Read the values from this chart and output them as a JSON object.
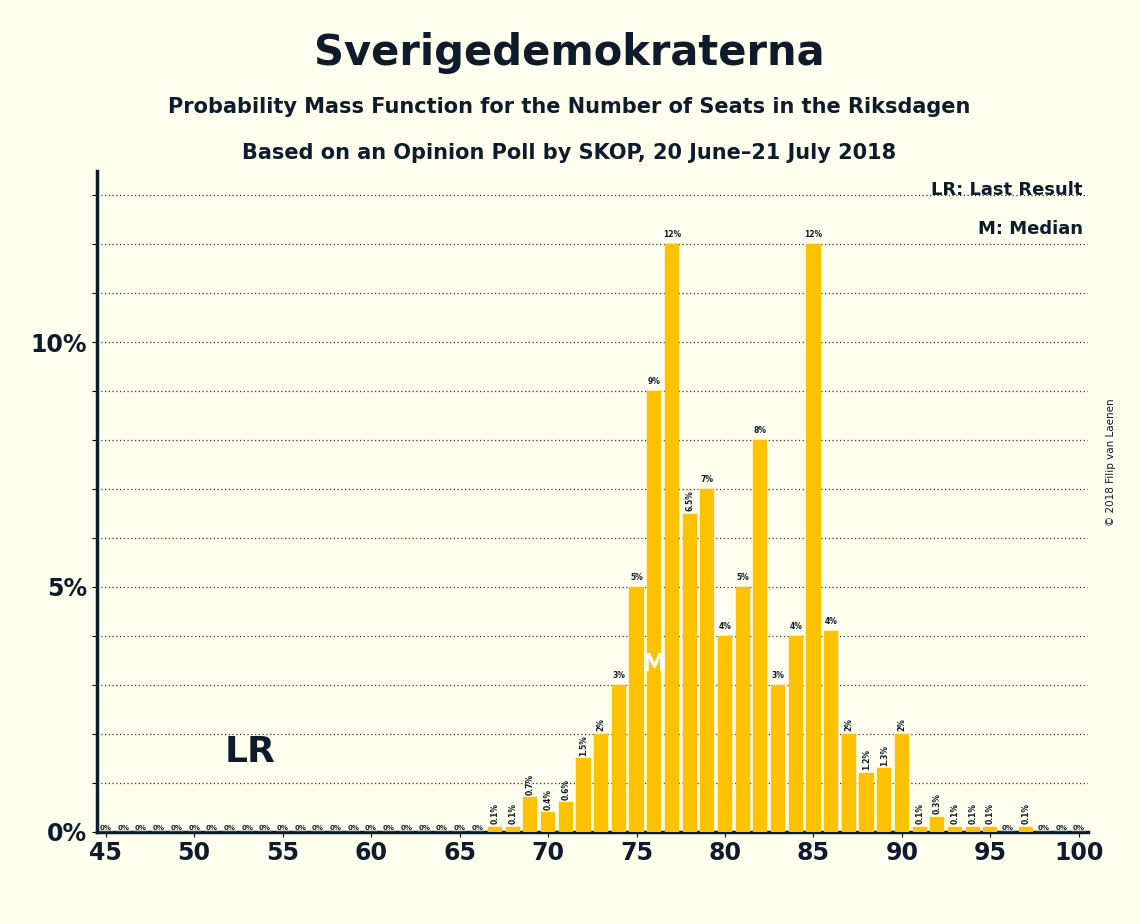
{
  "title": "Sverigedemokraterna",
  "subtitle1": "Probability Mass Function for the Number of Seats in the Riksdagen",
  "subtitle2": "Based on an Opinion Poll by SKOP, 20 June–21 July 2018",
  "copyright": "© 2018 Filip van Laenen",
  "legend_lr": "LR: Last Result",
  "legend_m": "M: Median",
  "lr_seat": 49,
  "median_seat": 76,
  "background_color": "#FFFFF0",
  "bar_color": "#FFC200",
  "text_color": "#0D1B2A",
  "xlim_lo": 44.5,
  "xlim_hi": 100.5,
  "ylim_lo": 0,
  "ylim_hi": 0.135,
  "x_ticks": [
    45,
    50,
    55,
    60,
    65,
    70,
    75,
    80,
    85,
    90,
    95,
    100
  ],
  "seats": [
    45,
    46,
    47,
    48,
    49,
    50,
    51,
    52,
    53,
    54,
    55,
    56,
    57,
    58,
    59,
    60,
    61,
    62,
    63,
    64,
    65,
    66,
    67,
    68,
    69,
    70,
    71,
    72,
    73,
    74,
    75,
    76,
    77,
    78,
    79,
    80,
    81,
    82,
    83,
    84,
    85,
    86,
    87,
    88,
    89,
    90,
    91,
    92,
    93,
    94,
    95,
    96,
    97,
    98,
    99,
    100
  ],
  "probs": [
    0.0,
    0.0,
    0.0,
    0.0,
    0.0,
    0.0,
    0.0,
    0.0,
    0.0,
    0.0,
    0.0,
    0.0,
    0.0,
    0.0,
    0.0,
    0.0,
    0.0,
    0.0,
    0.0,
    0.0,
    0.0,
    0.0,
    0.001,
    0.001,
    0.007,
    0.004,
    0.006,
    0.015,
    0.02,
    0.03,
    0.05,
    0.09,
    0.12,
    0.065,
    0.07,
    0.04,
    0.05,
    0.08,
    0.03,
    0.04,
    0.12,
    0.041,
    0.02,
    0.012,
    0.013,
    0.02,
    0.001,
    0.003,
    0.001,
    0.001,
    0.001,
    0.0,
    0.001,
    0.0,
    0.0,
    0.0
  ],
  "bar_labels": [
    "0%",
    "0%",
    "0%",
    "0%",
    "0%",
    "0%",
    "0%",
    "0%",
    "0%",
    "0%",
    "0%",
    "0%",
    "0%",
    "0%",
    "0%",
    "0%",
    "0%",
    "0%",
    "0%",
    "0%",
    "0%",
    "0%",
    "0.1%",
    "0.1%",
    "0.7%",
    "0.4%",
    "0.6%",
    "1.5%",
    "2%",
    "3%",
    "5%",
    "9%",
    "12%",
    "6.5%",
    "7%",
    "4%",
    "5%",
    "8%",
    "3%",
    "4%",
    "12%",
    "4%",
    "2%",
    "1.2%",
    "1.3%",
    "2%",
    "0.1%",
    "0.3%",
    "0.1%",
    "0.1%",
    "0.1%",
    "0%",
    "0.1%",
    "0%",
    "0%",
    "0%"
  ]
}
